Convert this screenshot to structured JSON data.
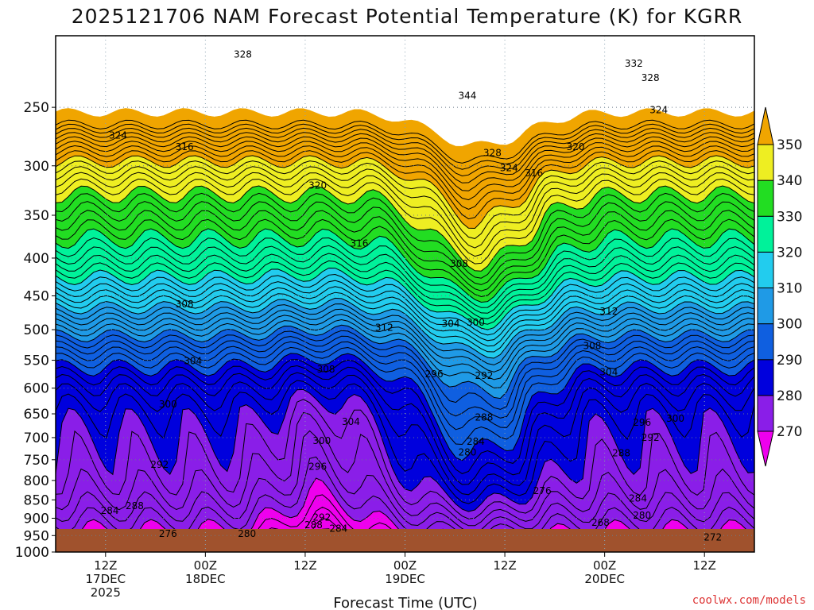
{
  "colors": {
    "ground": "#a0522d",
    "frame": "#000000",
    "grid": "#999999",
    "credit": "#dd3333"
  },
  "chart_data": {
    "type": "heatmap",
    "title": "2025121706 NAM Forecast Potential Temperature (K) for KGRR",
    "xlabel": "Forecast Time (UTC)",
    "ylabel": "",
    "credit": "coolwx.com/models",
    "x_ticks": [
      {
        "hours": 6,
        "lines": [
          "12Z",
          "17DEC",
          "2025"
        ]
      },
      {
        "hours": 18,
        "lines": [
          "00Z",
          "18DEC"
        ]
      },
      {
        "hours": 30,
        "lines": [
          "12Z"
        ]
      },
      {
        "hours": 42,
        "lines": [
          "00Z",
          "19DEC"
        ]
      },
      {
        "hours": 54,
        "lines": [
          "12Z"
        ]
      },
      {
        "hours": 66,
        "lines": [
          "00Z",
          "20DEC"
        ]
      },
      {
        "hours": 78,
        "lines": [
          "12Z"
        ]
      }
    ],
    "x_range_hours": [
      0,
      84
    ],
    "y_scale": "log-pressure",
    "y_range_hpa": [
      1000,
      200
    ],
    "y_ticks": [
      250,
      300,
      350,
      400,
      450,
      500,
      550,
      600,
      650,
      700,
      750,
      800,
      850,
      900,
      950,
      1000
    ],
    "colorbar": {
      "levels": [
        270,
        280,
        290,
        300,
        310,
        320,
        330,
        340,
        350
      ],
      "colors": [
        "#ee00ee",
        "#8a1ee8",
        "#0000dd",
        "#0f5fe0",
        "#1f9ae6",
        "#22ccee",
        "#00f29a",
        "#22dd22",
        "#eeee22",
        "#f0a500"
      ],
      "extend": "both"
    },
    "contour_labels": [
      {
        "value": 328,
        "hours": 22.5,
        "hpa": 212
      },
      {
        "value": 344,
        "hours": 49.5,
        "hpa": 241
      },
      {
        "value": 332,
        "hours": 69.5,
        "hpa": 218
      },
      {
        "value": 328,
        "hours": 71.5,
        "hpa": 228
      },
      {
        "value": 324,
        "hours": 72.5,
        "hpa": 252
      },
      {
        "value": 324,
        "hours": 7.5,
        "hpa": 273
      },
      {
        "value": 316,
        "hours": 15.5,
        "hpa": 283
      },
      {
        "value": 328,
        "hours": 52.5,
        "hpa": 288
      },
      {
        "value": 320,
        "hours": 62.5,
        "hpa": 283
      },
      {
        "value": 324,
        "hours": 54.5,
        "hpa": 302
      },
      {
        "value": 316,
        "hours": 57.5,
        "hpa": 307
      },
      {
        "value": 320,
        "hours": 31.5,
        "hpa": 319
      },
      {
        "value": 316,
        "hours": 36.5,
        "hpa": 382
      },
      {
        "value": 308,
        "hours": 48.5,
        "hpa": 407
      },
      {
        "value": 308,
        "hours": 15.5,
        "hpa": 462
      },
      {
        "value": 312,
        "hours": 66.5,
        "hpa": 472
      },
      {
        "value": 312,
        "hours": 39.5,
        "hpa": 497
      },
      {
        "value": 304,
        "hours": 47.5,
        "hpa": 491
      },
      {
        "value": 300,
        "hours": 50.5,
        "hpa": 489
      },
      {
        "value": 308,
        "hours": 64.5,
        "hpa": 526
      },
      {
        "value": 304,
        "hours": 16.5,
        "hpa": 551
      },
      {
        "value": 308,
        "hours": 32.5,
        "hpa": 566
      },
      {
        "value": 304,
        "hours": 66.5,
        "hpa": 571
      },
      {
        "value": 296,
        "hours": 45.5,
        "hpa": 574
      },
      {
        "value": 292,
        "hours": 51.5,
        "hpa": 577
      },
      {
        "value": 300,
        "hours": 13.5,
        "hpa": 631
      },
      {
        "value": 288,
        "hours": 51.5,
        "hpa": 657
      },
      {
        "value": 304,
        "hours": 35.5,
        "hpa": 666
      },
      {
        "value": 296,
        "hours": 70.5,
        "hpa": 668
      },
      {
        "value": 300,
        "hours": 74.5,
        "hpa": 660
      },
      {
        "value": 300,
        "hours": 32.0,
        "hpa": 707
      },
      {
        "value": 292,
        "hours": 71.5,
        "hpa": 700
      },
      {
        "value": 284,
        "hours": 50.5,
        "hpa": 709
      },
      {
        "value": 280,
        "hours": 49.5,
        "hpa": 733
      },
      {
        "value": 288,
        "hours": 68.0,
        "hpa": 735
      },
      {
        "value": 292,
        "hours": 12.5,
        "hpa": 762
      },
      {
        "value": 296,
        "hours": 31.5,
        "hpa": 766
      },
      {
        "value": 276,
        "hours": 58.5,
        "hpa": 826
      },
      {
        "value": 284,
        "hours": 70.0,
        "hpa": 846
      },
      {
        "value": 288,
        "hours": 9.5,
        "hpa": 866
      },
      {
        "value": 284,
        "hours": 6.5,
        "hpa": 879
      },
      {
        "value": 280,
        "hours": 70.5,
        "hpa": 892
      },
      {
        "value": 268,
        "hours": 65.5,
        "hpa": 912
      },
      {
        "value": 292,
        "hours": 32.0,
        "hpa": 898
      },
      {
        "value": 288,
        "hours": 31.0,
        "hpa": 919
      },
      {
        "value": 284,
        "hours": 34.0,
        "hpa": 930
      },
      {
        "value": 276,
        "hours": 13.5,
        "hpa": 945
      },
      {
        "value": 280,
        "hours": 23.0,
        "hpa": 945
      },
      {
        "value": 272,
        "hours": 79.0,
        "hpa": 955
      }
    ]
  }
}
